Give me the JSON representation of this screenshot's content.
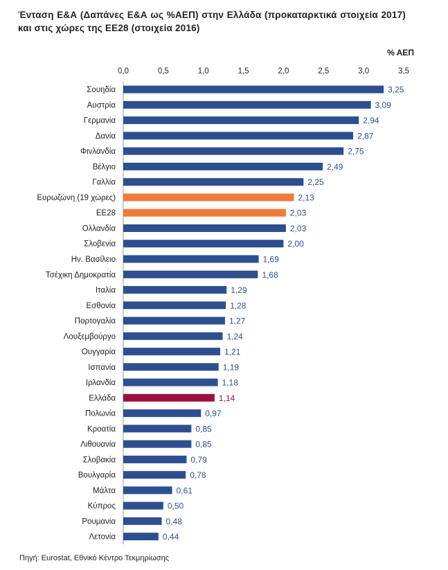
{
  "title": "Ένταση Ε&Α (Δαπάνες Ε&Α ως %ΑΕΠ) στην Ελλάδα (προκαταρκτικά στοιχεία 2017) και στις χώρες της ΕΕ28 (στοιχεία 2016)",
  "source": "Πηγή: Eurostat, Εθνικό Κέντρο Τεκμηρίωσης",
  "colors": {
    "default": "#2e4f8f",
    "aggregate": "#f07a3c",
    "greece": "#9b1040",
    "value_default": "#2e4f8f",
    "value_greece": "#9b1040"
  },
  "chart_data": {
    "type": "bar",
    "orientation": "horizontal",
    "unit_label": "% ΑΕΠ",
    "xlim": [
      0,
      3.5
    ],
    "x_ticks": [
      0.0,
      0.5,
      1.0,
      1.5,
      2.0,
      2.5,
      3.0,
      3.5
    ],
    "x_tick_labels": [
      "0,0",
      "0,5",
      "1,0",
      "1,5",
      "2,0",
      "2,5",
      "3,0",
      "3,5"
    ],
    "grid": false,
    "axis_position": "top",
    "categories": [
      "Σουηδία",
      "Αυστρία",
      "Γερμανία",
      "Δανία",
      "Φινλανδία",
      "Βέλγιο",
      "Γαλλία",
      "Ευρωζώνη (19 χώρες)",
      "ΕΕ28",
      "Ολλανδία",
      "Σλοβενία",
      "Ην. Βασίλειο",
      "Τσέχικη Δημοκρατία",
      "Ιταλία",
      "Εσθονία",
      "Πορτογαλία",
      "Λουξεμβούργο",
      "Ουγγαρία",
      "Ισπανία",
      "Ιρλανδία",
      "Ελλάδα",
      "Πολωνία",
      "Κροατία",
      "Λιθουανία",
      "Σλοβακία",
      "Βουλγαρία",
      "Μάλτα",
      "Κύπρος",
      "Ρουμανία",
      "Λετονία"
    ],
    "values": [
      3.25,
      3.09,
      2.94,
      2.87,
      2.75,
      2.49,
      2.25,
      2.13,
      2.03,
      2.03,
      2.0,
      1.69,
      1.68,
      1.29,
      1.28,
      1.27,
      1.24,
      1.21,
      1.19,
      1.18,
      1.14,
      0.97,
      0.85,
      0.85,
      0.79,
      0.78,
      0.61,
      0.5,
      0.48,
      0.44
    ],
    "value_labels": [
      "3,25",
      "3,09",
      "2,94",
      "2,87",
      "2,75",
      "2,49",
      "2,25",
      "2,13",
      "2,03",
      "2,03",
      "2,00",
      "1,69",
      "1,68",
      "1,29",
      "1,28",
      "1,27",
      "1,24",
      "1,21",
      "1,19",
      "1,18",
      "1,14",
      "0,97",
      "0,85",
      "0,85",
      "0,79",
      "0,78",
      "0,61",
      "0,50",
      "0,48",
      "0,44"
    ],
    "highlight": {
      "aggregate": [
        "Ευρωζώνη (19 χώρες)",
        "ΕΕ28"
      ],
      "greece": [
        "Ελλάδα"
      ]
    }
  }
}
